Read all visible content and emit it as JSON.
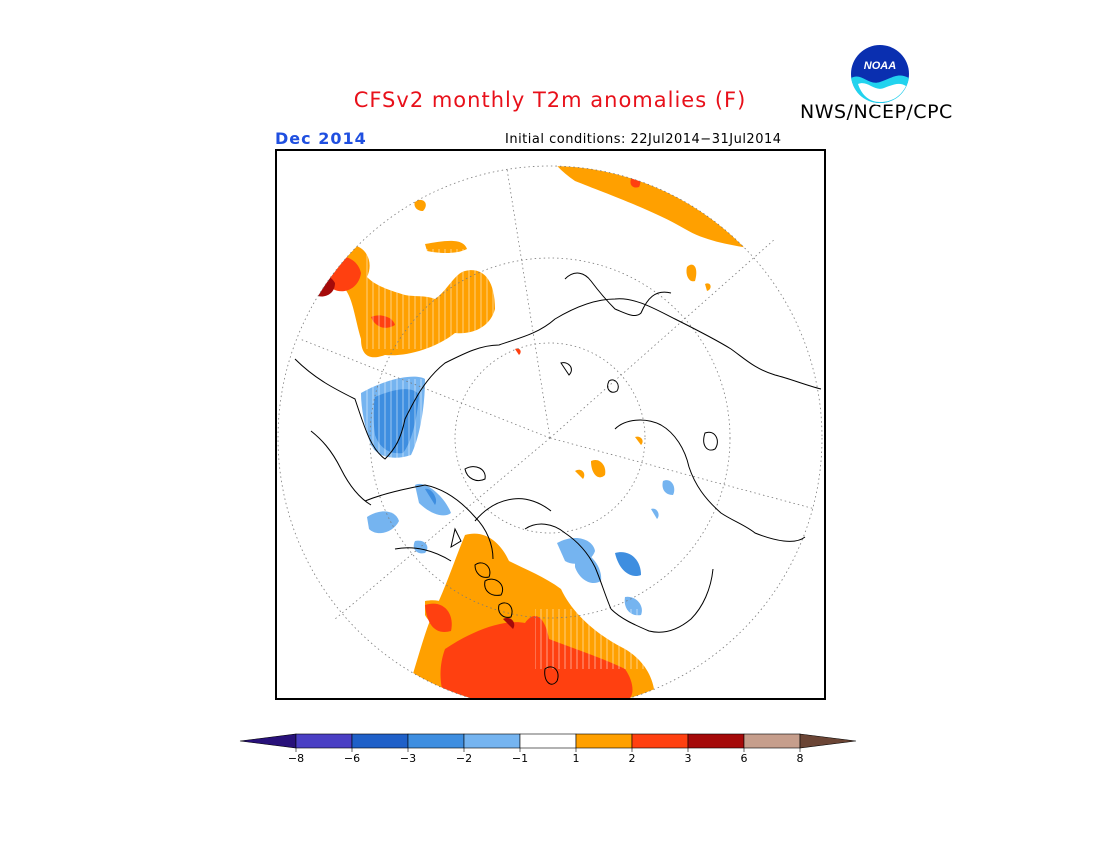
{
  "title": "CFSv2 monthly T2m anomalies (F)",
  "org": "NWS/NCEP/CPC",
  "logo_text": "NOAA",
  "month": "Dec 2014",
  "initial_conditions": "Initial conditions: 22Jul2014−31Jul2014",
  "colors": {
    "title": "#e8101a",
    "month": "#1f4fe0",
    "minus8_below": "#28117a",
    "minus8_to_minus6": "#4a3fc4",
    "minus6_to_minus3": "#1f60c8",
    "minus3_to_minus2": "#3e8ee0",
    "minus2_to_minus1": "#75b4f0",
    "neutral": "#ffffff",
    "plus1_to_plus2": "#ffa000",
    "plus2_to_plus3": "#ff4010",
    "plus3_to_plus6": "#a50a0a",
    "plus6_to_plus8": "#c69e8c",
    "plus8_above": "#6b4535"
  },
  "colorbar": {
    "ticks": [
      "−8",
      "−6",
      "−3",
      "−2",
      "−1",
      "1",
      "2",
      "3",
      "6",
      "8"
    ]
  }
}
